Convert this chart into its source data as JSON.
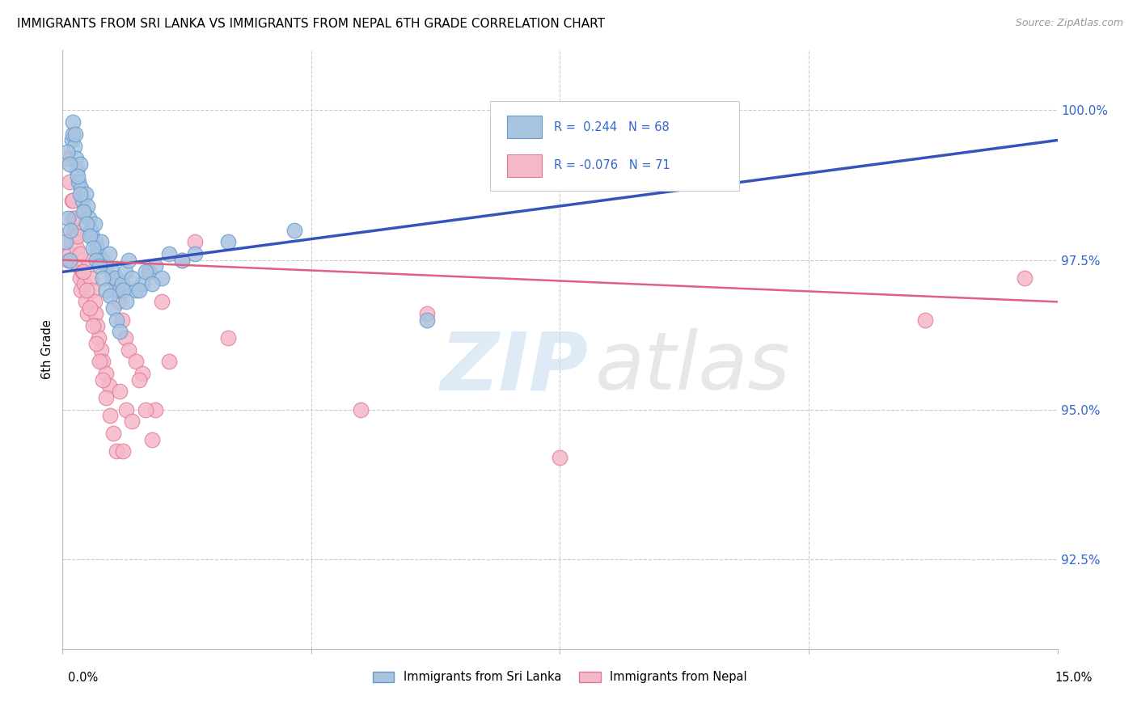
{
  "title": "IMMIGRANTS FROM SRI LANKA VS IMMIGRANTS FROM NEPAL 6TH GRADE CORRELATION CHART",
  "source": "Source: ZipAtlas.com",
  "ylabel": "6th Grade",
  "xmin": 0.0,
  "xmax": 15.0,
  "ymin": 91.0,
  "ymax": 101.0,
  "yticks": [
    92.5,
    95.0,
    97.5,
    100.0
  ],
  "ytick_labels": [
    "92.5%",
    "95.0%",
    "97.5%",
    "100.0%"
  ],
  "sri_lanka_color": "#a8c4e0",
  "sri_lanka_edge": "#6699cc",
  "nepal_color": "#f5b8c8",
  "nepal_edge": "#e07898",
  "trend_blue": "#3355bb",
  "trend_pink": "#e06080",
  "sri_lanka_x": [
    0.05,
    0.08,
    0.1,
    0.12,
    0.14,
    0.16,
    0.18,
    0.2,
    0.22,
    0.24,
    0.26,
    0.28,
    0.3,
    0.32,
    0.35,
    0.38,
    0.4,
    0.42,
    0.45,
    0.48,
    0.5,
    0.52,
    0.55,
    0.58,
    0.6,
    0.65,
    0.7,
    0.75,
    0.8,
    0.85,
    0.9,
    0.95,
    1.0,
    1.1,
    1.2,
    1.3,
    1.4,
    1.5,
    1.8,
    2.0,
    0.07,
    0.11,
    0.15,
    0.19,
    0.23,
    0.27,
    0.31,
    0.36,
    0.41,
    0.46,
    0.51,
    0.56,
    0.61,
    0.66,
    0.71,
    0.76,
    0.81,
    0.86,
    0.91,
    0.96,
    1.05,
    1.15,
    1.25,
    1.35,
    1.6,
    2.5,
    3.5,
    5.5
  ],
  "sri_lanka_y": [
    97.8,
    98.2,
    97.5,
    98.0,
    99.5,
    99.6,
    99.4,
    99.2,
    99.0,
    98.8,
    99.1,
    98.7,
    98.5,
    98.3,
    98.6,
    98.4,
    98.2,
    98.0,
    97.9,
    98.1,
    97.8,
    97.7,
    97.6,
    97.8,
    97.5,
    97.4,
    97.6,
    97.3,
    97.2,
    97.0,
    97.1,
    97.3,
    97.5,
    97.0,
    97.1,
    97.3,
    97.4,
    97.2,
    97.5,
    97.6,
    99.3,
    99.1,
    99.8,
    99.6,
    98.9,
    98.6,
    98.3,
    98.1,
    97.9,
    97.7,
    97.5,
    97.4,
    97.2,
    97.0,
    96.9,
    96.7,
    96.5,
    96.3,
    97.0,
    96.8,
    97.2,
    97.0,
    97.3,
    97.1,
    97.6,
    97.8,
    98.0,
    96.5
  ],
  "nepal_x": [
    0.05,
    0.08,
    0.1,
    0.12,
    0.14,
    0.16,
    0.18,
    0.2,
    0.22,
    0.24,
    0.26,
    0.28,
    0.3,
    0.32,
    0.35,
    0.38,
    0.4,
    0.42,
    0.45,
    0.48,
    0.5,
    0.52,
    0.55,
    0.58,
    0.6,
    0.65,
    0.7,
    0.75,
    0.8,
    0.85,
    0.9,
    0.95,
    1.0,
    1.1,
    1.2,
    1.3,
    1.4,
    1.5,
    1.8,
    2.0,
    0.07,
    0.11,
    0.15,
    0.19,
    0.23,
    0.27,
    0.31,
    0.36,
    0.41,
    0.46,
    0.51,
    0.56,
    0.61,
    0.66,
    0.71,
    0.76,
    0.81,
    0.86,
    0.91,
    0.96,
    1.05,
    1.15,
    1.25,
    1.35,
    1.6,
    2.5,
    4.5,
    5.5,
    7.5,
    13.0,
    14.5
  ],
  "nepal_y": [
    97.8,
    97.5,
    97.6,
    97.5,
    98.5,
    98.2,
    98.0,
    97.9,
    97.7,
    97.4,
    97.2,
    97.0,
    97.3,
    97.1,
    96.8,
    96.6,
    97.5,
    97.2,
    97.0,
    96.8,
    96.6,
    96.4,
    96.2,
    96.0,
    95.8,
    95.6,
    95.4,
    97.2,
    97.0,
    96.8,
    96.5,
    96.2,
    96.0,
    95.8,
    95.6,
    97.3,
    95.0,
    96.8,
    97.5,
    97.8,
    99.2,
    98.8,
    98.5,
    98.2,
    97.9,
    97.6,
    97.3,
    97.0,
    96.7,
    96.4,
    96.1,
    95.8,
    95.5,
    95.2,
    94.9,
    94.6,
    94.3,
    95.3,
    94.3,
    95.0,
    94.8,
    95.5,
    95.0,
    94.5,
    95.8,
    96.2,
    95.0,
    96.6,
    94.2,
    96.5,
    97.2
  ]
}
